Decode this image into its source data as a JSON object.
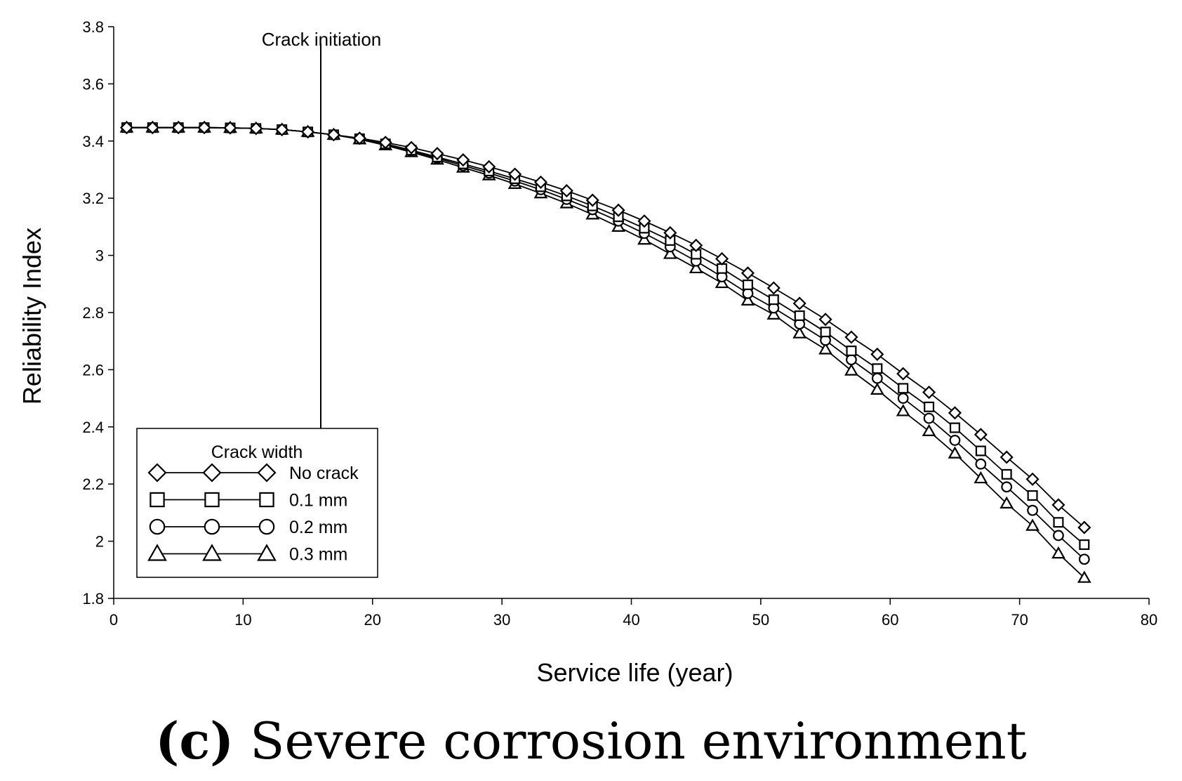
{
  "chart_data": {
    "type": "line",
    "ylabel": "Reliability Index",
    "xlabel": "Service life (year)",
    "xlim": [
      0,
      80
    ],
    "ylim": [
      1.8,
      3.8
    ],
    "x_ticks": [
      "0",
      "10",
      "20",
      "30",
      "40",
      "50",
      "60",
      "70",
      "80"
    ],
    "y_ticks": [
      "1.8",
      "2",
      "2.2",
      "2.4",
      "2.6",
      "2.8",
      "3",
      "3.2",
      "3.4",
      "3.6",
      "3.8"
    ],
    "annotation": {
      "label": "Crack initiation",
      "x": 16
    },
    "legend_title": "Crack width",
    "legend_position": "bottom-left",
    "x": [
      1,
      3,
      5,
      7,
      9,
      11,
      13,
      15,
      17,
      19,
      21,
      23,
      25,
      27,
      29,
      31,
      33,
      35,
      37,
      39,
      41,
      43,
      45,
      47,
      49,
      51,
      53,
      55,
      57,
      59,
      61,
      63,
      65,
      67,
      69,
      71,
      73,
      75
    ],
    "series": [
      {
        "name": "No crack",
        "marker": "diamond",
        "values": [
          3.447,
          3.447,
          3.447,
          3.447,
          3.446,
          3.444,
          3.44,
          3.432,
          3.422,
          3.41,
          3.395,
          3.377,
          3.356,
          3.334,
          3.31,
          3.284,
          3.256,
          3.226,
          3.193,
          3.158,
          3.12,
          3.079,
          3.035,
          2.988,
          2.938,
          2.886,
          2.832,
          2.776,
          2.714,
          2.654,
          2.586,
          2.521,
          2.449,
          2.373,
          2.294,
          2.217,
          2.127,
          2.048
        ]
      },
      {
        "name": "0.1 mm",
        "marker": "square",
        "values": [
          3.447,
          3.447,
          3.447,
          3.447,
          3.446,
          3.444,
          3.44,
          3.432,
          3.422,
          3.408,
          3.39,
          3.368,
          3.344,
          3.32,
          3.295,
          3.268,
          3.24,
          3.208,
          3.173,
          3.135,
          3.095,
          3.052,
          3.004,
          2.954,
          2.897,
          2.845,
          2.789,
          2.732,
          2.666,
          2.604,
          2.535,
          2.47,
          2.397,
          2.316,
          2.234,
          2.16,
          2.066,
          1.988
        ]
      },
      {
        "name": "0.2 mm",
        "marker": "circle",
        "values": [
          3.447,
          3.447,
          3.447,
          3.447,
          3.446,
          3.444,
          3.44,
          3.432,
          3.422,
          3.407,
          3.388,
          3.365,
          3.34,
          3.314,
          3.288,
          3.26,
          3.23,
          3.196,
          3.16,
          3.12,
          3.077,
          3.03,
          2.98,
          2.925,
          2.867,
          2.816,
          2.76,
          2.703,
          2.635,
          2.57,
          2.5,
          2.43,
          2.353,
          2.27,
          2.19,
          2.108,
          2.02,
          1.937
        ]
      },
      {
        "name": "0.3 mm",
        "marker": "triangle",
        "values": [
          3.447,
          3.447,
          3.447,
          3.447,
          3.446,
          3.444,
          3.44,
          3.432,
          3.422,
          3.406,
          3.385,
          3.361,
          3.335,
          3.307,
          3.28,
          3.25,
          3.217,
          3.182,
          3.143,
          3.1,
          3.055,
          3.005,
          2.955,
          2.903,
          2.842,
          2.793,
          2.727,
          2.671,
          2.597,
          2.53,
          2.455,
          2.385,
          2.307,
          2.22,
          2.132,
          2.054,
          1.957,
          1.872
        ]
      }
    ]
  },
  "caption": {
    "letter": "(c)",
    "text": "Severe corrosion environment"
  }
}
